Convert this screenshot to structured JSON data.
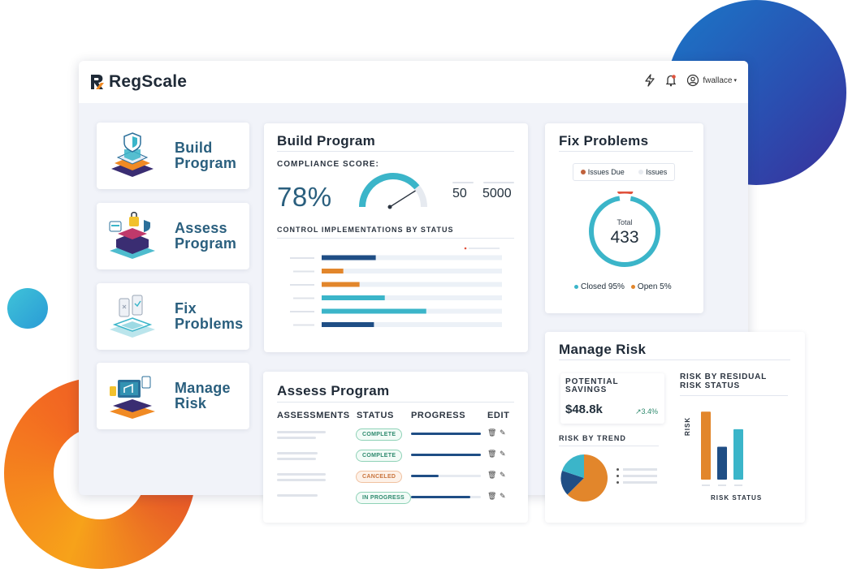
{
  "app": {
    "brand": "RegScale",
    "user": "fwallace"
  },
  "icons": {
    "flash": "lightning-icon",
    "bell": "bell-icon",
    "user": "user-circle-icon"
  },
  "nav": [
    {
      "label": "Build Program",
      "icon": "build-program-illustration"
    },
    {
      "label": "Assess Program",
      "icon": "assess-program-illustration"
    },
    {
      "label": "Fix Problems",
      "icon": "fix-problems-illustration"
    },
    {
      "label": "Manage Risk",
      "icon": "manage-risk-illustration"
    }
  ],
  "build": {
    "title": "Build Program",
    "score_label": "COMPLIANCE SCORE:",
    "score": "78%",
    "score_value": 0.78,
    "stat1": "50",
    "stat2": "5000",
    "chart_caption": "CONTROL IMPLEMENTATIONS BY STATUS"
  },
  "fix": {
    "title": "Fix Problems",
    "legend_due": "Issues Due",
    "legend_issues": "Issues",
    "total_label": "Total",
    "total": "433",
    "closed_label": "Closed 95%",
    "open_label": "Open 5%"
  },
  "assess": {
    "title": "Assess Program",
    "headers": [
      "ASSESSMENTS",
      "STATUS",
      "PROGRESS",
      "EDIT"
    ],
    "rows": [
      {
        "status": "COMPLETE",
        "progress": 1.0
      },
      {
        "status": "COMPLETE",
        "progress": 1.0
      },
      {
        "status": "CANCELED",
        "progress": 0.4
      },
      {
        "status": "IN PROGRESS",
        "progress": 0.85
      }
    ]
  },
  "risk": {
    "title": "Manage Risk",
    "savings_label": "POTENTIAL SAVINGS",
    "savings": "$48.8k",
    "savings_change": "3.4%",
    "trend_label": "RISK BY TREND",
    "residual_label": "RISK BY RESIDUAL RISK STATUS",
    "y_axis": "RISK",
    "x_axis": "RISK STATUS"
  },
  "colors": {
    "navy": "#1f4e85",
    "orange": "#e2862b",
    "teal": "#3bb5c9",
    "accent_red": "#e0523c"
  }
}
